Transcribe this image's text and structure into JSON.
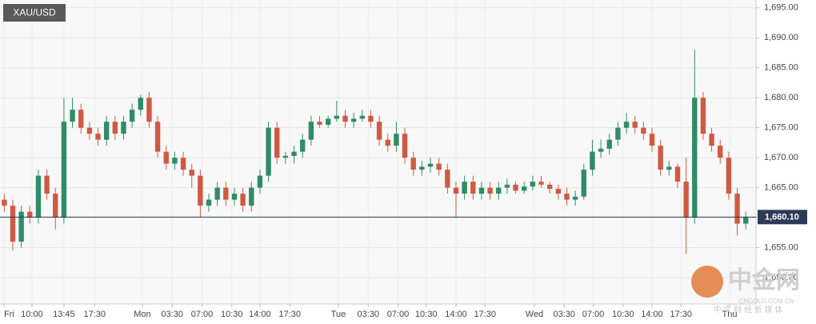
{
  "chart_data": {
    "type": "candlestick",
    "symbol": "XAU/USD",
    "open": [
      1663,
      1662,
      1656,
      1661,
      1660,
      1667,
      1664,
      1660,
      1676,
      1678,
      1675,
      1674,
      1673,
      1676,
      1674,
      1676,
      1678,
      1680,
      1676,
      1671,
      1669,
      1670,
      1668,
      1667,
      1662,
      1663,
      1665,
      1663,
      1664,
      1662,
      1665,
      1667,
      1675,
      1670,
      1670.3,
      1671,
      1673,
      1676,
      1675.5,
      1676.5,
      1677,
      1676,
      1676.5,
      1677,
      1676,
      1673,
      1672,
      1674,
      1670,
      1668,
      1668.5,
      1669,
      1668,
      1665,
      1664,
      1666,
      1664,
      1665,
      1664,
      1665,
      1665.5,
      1664.5,
      1665.2,
      1666,
      1665.5,
      1664.8,
      1664,
      1663,
      1663.5,
      1668,
      1671,
      1671.5,
      1673,
      1675,
      1676,
      1675,
      1674,
      1672,
      1668,
      1668.5,
      1666,
      1660,
      1680,
      1674,
      1672,
      1670,
      1664,
      1659
    ],
    "high": [
      1664,
      1663,
      1662,
      1662,
      1668,
      1668,
      1665,
      1680,
      1680,
      1679,
      1676,
      1675,
      1677,
      1677,
      1677,
      1679,
      1680.5,
      1681,
      1677,
      1672,
      1671,
      1671,
      1669,
      1668,
      1664,
      1666,
      1666,
      1665,
      1665,
      1666,
      1668,
      1676,
      1676,
      1671,
      1672,
      1674,
      1677,
      1677,
      1677,
      1679.5,
      1678,
      1677.5,
      1678,
      1678,
      1677,
      1674,
      1676,
      1675,
      1671,
      1669.5,
      1670,
      1670,
      1669,
      1666,
      1667,
      1667,
      1666,
      1666,
      1666,
      1666.5,
      1666,
      1666,
      1667,
      1667,
      1666,
      1665.5,
      1665,
      1664.5,
      1669,
      1673,
      1673,
      1674,
      1676,
      1677.5,
      1677,
      1676,
      1675,
      1673,
      1669.5,
      1669,
      1670,
      1688,
      1681,
      1675,
      1673,
      1671,
      1665,
      1661
    ],
    "low": [
      1661,
      1654.5,
      1655,
      1659,
      1659,
      1663,
      1658,
      1659,
      1675,
      1674,
      1673,
      1672,
      1672,
      1673,
      1673,
      1675,
      1677,
      1675,
      1670,
      1668,
      1668,
      1667,
      1665,
      1660,
      1661,
      1662,
      1662,
      1662,
      1661,
      1661,
      1664,
      1666,
      1669,
      1669,
      1669,
      1670,
      1672,
      1675,
      1675,
      1676,
      1675,
      1675,
      1676,
      1675,
      1672,
      1671,
      1671,
      1669,
      1667,
      1667,
      1667.5,
      1667,
      1664,
      1660,
      1663,
      1663,
      1663,
      1663,
      1663,
      1664,
      1664,
      1664,
      1664.5,
      1665,
      1664,
      1663,
      1662,
      1662,
      1663,
      1667,
      1670,
      1670.5,
      1672,
      1674,
      1674,
      1673,
      1671,
      1667,
      1667,
      1665,
      1654,
      1659,
      1673,
      1671,
      1669,
      1663,
      1657,
      1658
    ],
    "close": [
      1662,
      1656,
      1661,
      1660,
      1667,
      1664,
      1660,
      1676,
      1678,
      1675,
      1674,
      1673,
      1676,
      1674,
      1676,
      1678,
      1680,
      1676,
      1671,
      1669,
      1670,
      1668,
      1667,
      1662,
      1663,
      1665,
      1663,
      1664,
      1662,
      1665,
      1667,
      1675,
      1670,
      1670.3,
      1671,
      1673,
      1676,
      1675.5,
      1676.5,
      1677,
      1676,
      1676.5,
      1677,
      1676,
      1673,
      1672,
      1674,
      1670,
      1668,
      1668.5,
      1669,
      1668,
      1665,
      1664,
      1666,
      1664,
      1665,
      1664,
      1665,
      1665.5,
      1664.5,
      1665.2,
      1666,
      1665.5,
      1664.8,
      1664,
      1663,
      1663.5,
      1668,
      1671,
      1671.5,
      1673,
      1675,
      1676,
      1675,
      1674,
      1672,
      1668,
      1668.5,
      1666,
      1660,
      1680,
      1674,
      1672,
      1670,
      1664,
      1659,
      1660.1
    ],
    "up_color": "#2f8c67",
    "down_color": "#cf5a42",
    "last_price": 1660.1,
    "last_price_label": "1,660.10",
    "last_price_color": "#2c3b57",
    "ylim": [
      1645.6,
      1696.3
    ],
    "yticks": [
      {
        "value": 1650,
        "label": "1,650.00"
      },
      {
        "value": 1655,
        "label": "1,655.00"
      },
      {
        "value": 1660,
        "label": "1,660.00"
      },
      {
        "value": 1665,
        "label": "1,665.00"
      },
      {
        "value": 1670,
        "label": "1,670.00"
      },
      {
        "value": 1675,
        "label": "1,675.00"
      },
      {
        "value": 1680,
        "label": "1,680.00"
      },
      {
        "value": 1685,
        "label": "1,685.00"
      },
      {
        "value": 1690,
        "label": "1,690.00"
      },
      {
        "value": 1695,
        "label": "1,695.00"
      }
    ],
    "xlim": [
      0,
      88.7
    ],
    "xticks": [
      {
        "value": 0.47,
        "label": "Fri"
      },
      {
        "value": 3.75,
        "label": "10:00"
      },
      {
        "value": 7.5,
        "label": "13:45"
      },
      {
        "value": 11.1,
        "label": "17:30"
      },
      {
        "value": 16.7,
        "label": "Mon"
      },
      {
        "value": 20.2,
        "label": "03:30"
      },
      {
        "value": 23.7,
        "label": "07:00"
      },
      {
        "value": 27.2,
        "label": "10:30"
      },
      {
        "value": 30.5,
        "label": "14:00"
      },
      {
        "value": 34,
        "label": "17:30"
      },
      {
        "value": 39.7,
        "label": "Tue"
      },
      {
        "value": 43.2,
        "label": "03:30"
      },
      {
        "value": 46.7,
        "label": "07:00"
      },
      {
        "value": 50,
        "label": "10:30"
      },
      {
        "value": 53.5,
        "label": "14:00"
      },
      {
        "value": 56.9,
        "label": "17:30"
      },
      {
        "value": 62.7,
        "label": "Wed"
      },
      {
        "value": 66.2,
        "label": "03:30"
      },
      {
        "value": 69.6,
        "label": "07:00"
      },
      {
        "value": 73.1,
        "label": "10:30"
      },
      {
        "value": 76.5,
        "label": "14:00"
      },
      {
        "value": 79.9,
        "label": "17:30"
      },
      {
        "value": 85.6,
        "label": "Thu"
      }
    ],
    "grid": true,
    "watermark": {
      "name": "中金网",
      "site": "CNGOLD.COM.CN",
      "slogan": "中 文 财 经 新 媒 体"
    }
  }
}
